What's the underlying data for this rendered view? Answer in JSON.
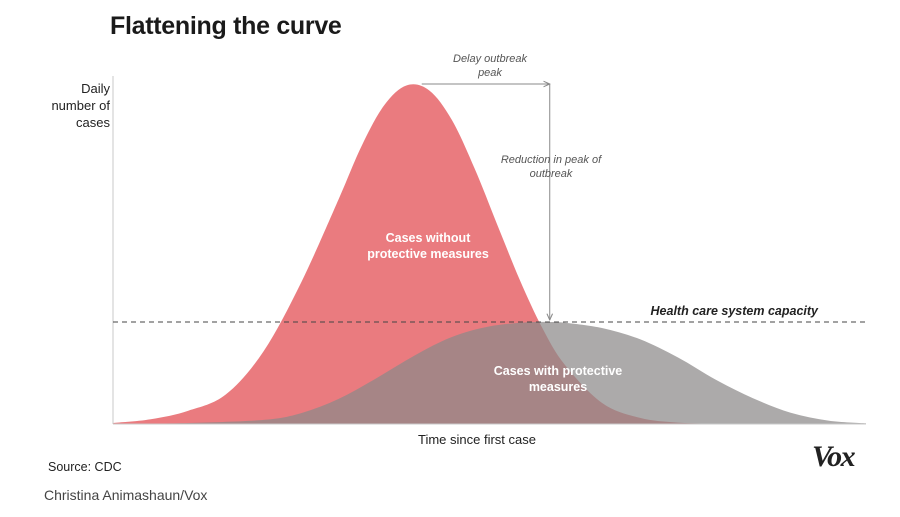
{
  "header": {
    "title": "Flattening the curve"
  },
  "y_axis_label_lines": [
    "Daily",
    "number of",
    "cases"
  ],
  "footer": {
    "source": "Source: CDC",
    "credit": "Christina Animashaun/Vox",
    "logo": "Vox"
  },
  "chart_data": {
    "type": "area",
    "title": "Flattening the curve",
    "xlabel": "Time since first case",
    "ylabel": "Daily number of cases",
    "x_range": [
      0,
      100
    ],
    "y_range": [
      0,
      100
    ],
    "grid": false,
    "series": [
      {
        "name": "Cases without protective measures",
        "label_lines": [
          "Cases without",
          "protective measures"
        ],
        "color": "#ea7b7f",
        "x": [
          0,
          5,
          10,
          15,
          20,
          25,
          30,
          33,
          36,
          39,
          42,
          45,
          48,
          51,
          54,
          57,
          60,
          65,
          70,
          75,
          80,
          85,
          90,
          100
        ],
        "y": [
          0.3,
          1.4,
          3.9,
          8.7,
          21.4,
          41.7,
          66.3,
          81.7,
          93.7,
          99.6,
          98.1,
          89.4,
          75.3,
          58.8,
          42.5,
          28.3,
          17.4,
          6.1,
          1.8,
          0.4,
          0.1,
          0,
          0,
          0
        ]
      },
      {
        "name": "Cases with protective measures",
        "label_lines": [
          "Cases with protective",
          "measures"
        ],
        "color": "#8c8989",
        "x": [
          0,
          10,
          20,
          25,
          30,
          35,
          40,
          45,
          50,
          55,
          58,
          60,
          65,
          70,
          75,
          80,
          85,
          90,
          95,
          100
        ],
        "y": [
          0,
          0.3,
          1.2,
          3.2,
          7.4,
          13.5,
          20.1,
          25.6,
          28.7,
          29.9,
          30.0,
          29.8,
          28.2,
          24.9,
          19.6,
          13.1,
          7.6,
          3.3,
          1.0,
          0.2
        ]
      }
    ],
    "reference_lines": [
      {
        "name": "Health care system capacity",
        "y": 30
      }
    ],
    "annotations": [
      {
        "name": "delay",
        "lines": [
          "Delay outbreak",
          "peak"
        ],
        "from_x": 41,
        "to_x": 58
      },
      {
        "name": "reduction",
        "lines": [
          "Reduction in peak of",
          "outbreak"
        ],
        "x": 58,
        "from_y": 100,
        "to_y": 30
      }
    ]
  }
}
